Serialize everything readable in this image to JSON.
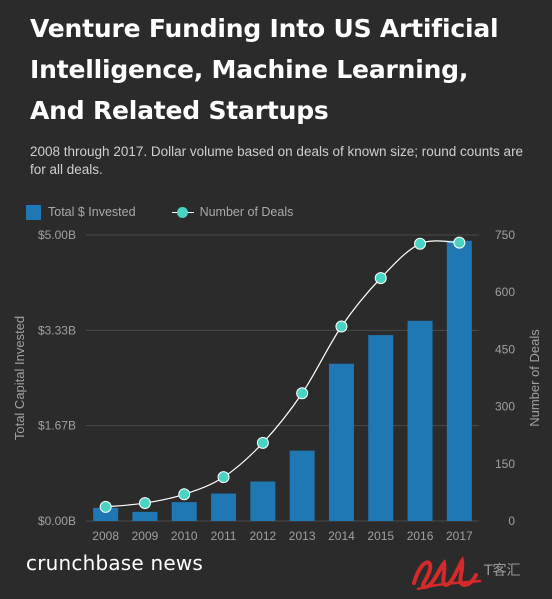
{
  "title": "Venture Funding Into US Artificial Intelligence, Machine Learning, And Related Startups",
  "subtitle": "2008 through 2017. Dollar volume based on deals of known size; round counts are for all deals.",
  "legend": {
    "bars_label": "Total $ Invested",
    "line_label": "Number of Deals"
  },
  "brand": "crunchbase news",
  "watermark_text": "T客汇",
  "colors": {
    "background": "#2b2b2b",
    "bar": "#1f78b4",
    "line": "#ffffff",
    "marker": "#49d3c2",
    "grid": "#4a4a4a",
    "axis_text": "#a0a0a0"
  },
  "chart_data": {
    "type": "bar",
    "categories": [
      "2008",
      "2009",
      "2010",
      "2011",
      "2012",
      "2013",
      "2014",
      "2015",
      "2016",
      "2017"
    ],
    "series": [
      {
        "name": "Total $ Invested",
        "type": "bar",
        "axis": "left",
        "unit": "billion USD",
        "values": [
          0.23,
          0.16,
          0.33,
          0.48,
          0.69,
          1.23,
          2.75,
          3.25,
          3.5,
          4.9
        ]
      },
      {
        "name": "Number of Deals",
        "type": "line",
        "axis": "right",
        "values": [
          37,
          47,
          70,
          115,
          205,
          335,
          510,
          637,
          727,
          730
        ]
      }
    ],
    "ylabel": "Total Capital Invested",
    "y2label": "Number of Deals",
    "ylim": [
      0,
      5
    ],
    "y2lim": [
      0,
      750
    ],
    "yticks": [
      "$0.00B",
      "$1.67B",
      "$3.33B",
      "$5.00B"
    ],
    "y2ticks": [
      "0",
      "150",
      "300",
      "450",
      "600",
      "750"
    ],
    "grid": true,
    "legend_position": "top-left"
  }
}
